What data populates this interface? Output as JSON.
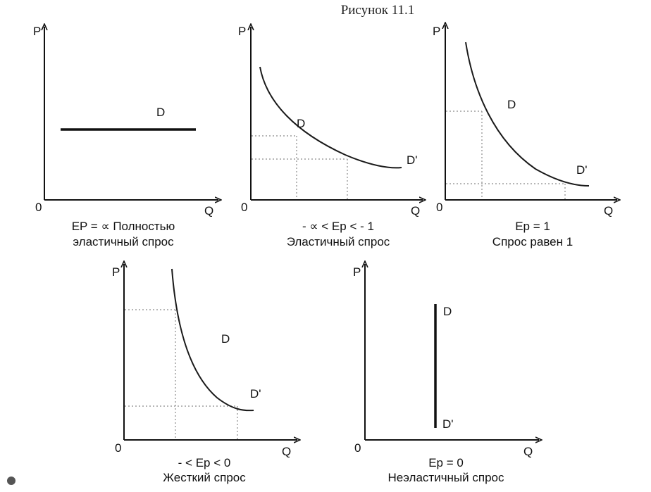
{
  "figure_title": "Рисунок 11.1",
  "axis": {
    "price": "P",
    "quantity": "Q",
    "origin": "0"
  },
  "panels": [
    {
      "id": "perfectly-elastic",
      "demand_label": "D",
      "caption": [
        "EP = ∝ Полностью",
        "эластичный спрос"
      ]
    },
    {
      "id": "elastic",
      "demand_label": "D",
      "demand_end_label": "D'",
      "caption": [
        "- ∝  < Eр < - 1",
        "Эластичный спрос"
      ]
    },
    {
      "id": "unit-elastic",
      "demand_label": "D",
      "demand_end_label": "D'",
      "caption": [
        "Eр = 1",
        "Спрос равен 1"
      ]
    },
    {
      "id": "inelastic",
      "demand_label": "D",
      "demand_end_label": "D'",
      "caption": [
        "- < Eр < 0",
        "Жесткий спрос"
      ]
    },
    {
      "id": "perfectly-inelastic",
      "demand_label": "D",
      "demand_end_label": "D'",
      "caption": [
        "Eр = 0",
        "Неэластичный спрос"
      ]
    }
  ]
}
